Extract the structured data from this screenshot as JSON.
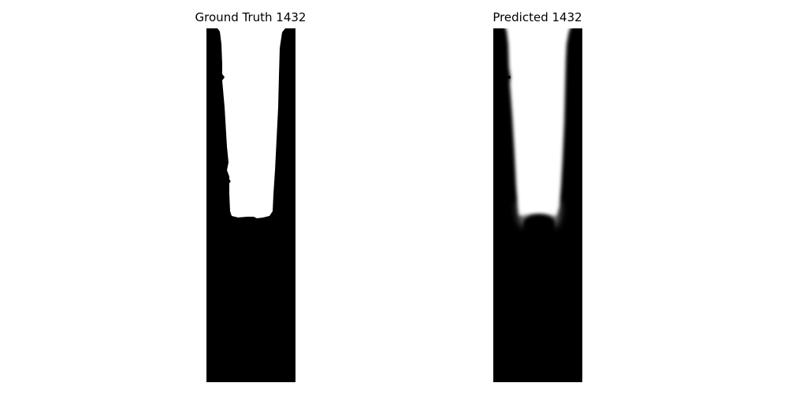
{
  "panels": [
    {
      "id": "ground-truth",
      "title": "Ground Truth 1432",
      "mask": "binary segmentation mask",
      "colors": {
        "background": "#000000",
        "foreground": "#ffffff"
      }
    },
    {
      "id": "predicted",
      "title": "Predicted 1432",
      "mask": "soft segmentation mask",
      "colors": {
        "background": "#000000",
        "foreground": "#ffffff"
      }
    }
  ]
}
